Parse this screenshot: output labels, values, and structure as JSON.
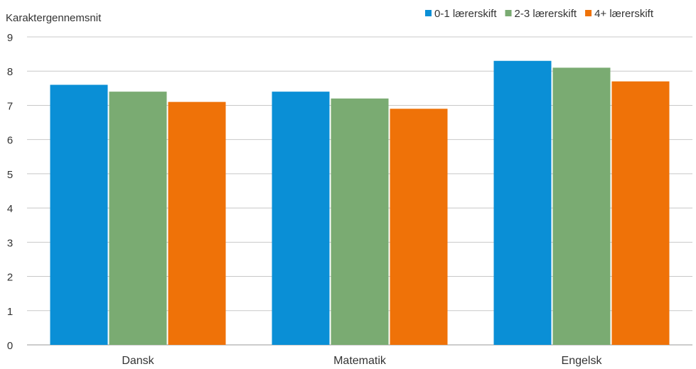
{
  "chart_data": {
    "type": "bar",
    "title": "",
    "xlabel": "",
    "ylabel": "Karaktergennemsnit",
    "categories": [
      "Dansk",
      "Matematik",
      "Engelsk"
    ],
    "series": [
      {
        "name": "0-1 lærerskift",
        "color": "#0a8fd6",
        "values": [
          7.6,
          7.4,
          8.3
        ]
      },
      {
        "name": "2-3 lærerskift",
        "color": "#7aab72",
        "values": [
          7.4,
          7.2,
          8.1
        ]
      },
      {
        "name": "4+ lærerskift",
        "color": "#ef7208",
        "values": [
          7.1,
          6.9,
          7.7
        ]
      }
    ],
    "ylim": [
      0,
      9
    ],
    "yticks": [
      "0",
      "1",
      "2",
      "3",
      "4",
      "5",
      "6",
      "7",
      "8",
      "9"
    ],
    "grid": true,
    "legend_position": "top-right"
  }
}
